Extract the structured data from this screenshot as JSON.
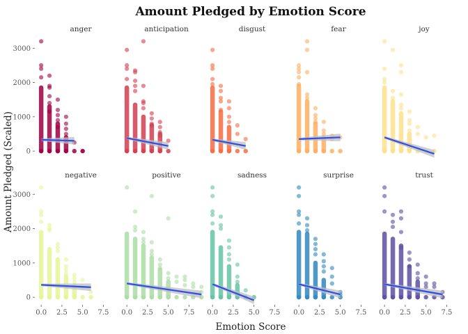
{
  "chart_data": {
    "type": "scatter",
    "title": "Amount Pledged by Emotion Score",
    "xlabel": "Emotion Score",
    "ylabel": "Amount Pledged (Scaled)",
    "xlim": [
      -0.6,
      7.8
    ],
    "ylim": [
      -180,
      3350
    ],
    "x_ticks": [
      0,
      2.5,
      5,
      7.5
    ],
    "x_tick_labels": [
      "0.0",
      "2.5",
      "5.0",
      "7.5"
    ],
    "y_ticks": [
      0,
      1000,
      2000,
      3000
    ],
    "y_tick_labels": [
      "0",
      "1000",
      "2000",
      "3000"
    ],
    "grid": false,
    "legend": "none",
    "trend_color": "#3050e8",
    "ribbon_color": "#bdbdbd",
    "panels": [
      {
        "name": "anger",
        "color": "#9e0142",
        "max_x": 4,
        "trend": [
          [
            0,
            330
          ],
          [
            4,
            300
          ]
        ],
        "points": [
          [
            0,
            3200
          ],
          [
            0,
            2500
          ],
          [
            0,
            2400
          ],
          [
            0,
            2150
          ],
          [
            1,
            2200
          ],
          [
            1,
            1900
          ],
          [
            1,
            1850
          ],
          [
            1,
            1600
          ],
          [
            1,
            1400
          ],
          [
            1,
            1150
          ],
          [
            2,
            1500
          ],
          [
            2,
            1200
          ],
          [
            2,
            1050
          ],
          [
            2,
            900
          ],
          [
            2,
            700
          ],
          [
            3,
            1000
          ],
          [
            3,
            800
          ],
          [
            3,
            650
          ],
          [
            3,
            500
          ],
          [
            4,
            250
          ],
          [
            5,
            0
          ]
        ],
        "dense": [
          [
            0,
            0,
            1850
          ],
          [
            1,
            0,
            1300
          ],
          [
            2,
            0,
            800
          ],
          [
            3,
            0,
            400
          ]
        ],
        "zero_x": [
          0,
          1,
          2,
          3,
          4,
          5
        ]
      },
      {
        "name": "anticipation",
        "color": "#d53e4f",
        "max_x": 5,
        "trend": [
          [
            0,
            380
          ],
          [
            5,
            150
          ]
        ],
        "points": [
          [
            0,
            2950
          ],
          [
            0,
            2500
          ],
          [
            0,
            2400
          ],
          [
            0,
            2100
          ],
          [
            1,
            2350
          ],
          [
            1,
            2300
          ],
          [
            1,
            2050
          ],
          [
            1,
            1900
          ],
          [
            1,
            1750
          ],
          [
            2,
            3200
          ],
          [
            2,
            1900
          ],
          [
            2,
            1450
          ],
          [
            2,
            1400
          ],
          [
            2,
            1250
          ],
          [
            3,
            1100
          ],
          [
            3,
            950
          ],
          [
            3,
            800
          ],
          [
            3,
            750
          ],
          [
            4,
            850
          ],
          [
            4,
            700
          ],
          [
            4,
            550
          ],
          [
            4,
            450
          ],
          [
            5,
            300
          ]
        ],
        "dense": [
          [
            0,
            0,
            1850
          ],
          [
            1,
            0,
            1350
          ],
          [
            2,
            0,
            1000
          ],
          [
            3,
            0,
            750
          ],
          [
            4,
            0,
            500
          ]
        ],
        "zero_x": [
          0,
          1,
          2,
          3,
          4,
          5
        ]
      },
      {
        "name": "disgust",
        "color": "#f46d43",
        "max_x": 4,
        "trend": [
          [
            0,
            330
          ],
          [
            4,
            150
          ]
        ],
        "points": [
          [
            0,
            2950
          ],
          [
            0,
            2500
          ],
          [
            0,
            2400
          ],
          [
            0,
            2100
          ],
          [
            0,
            1950
          ],
          [
            1,
            1900
          ],
          [
            1,
            1750
          ],
          [
            1,
            1550
          ],
          [
            1,
            1450
          ],
          [
            1,
            1200
          ],
          [
            2,
            1450
          ],
          [
            2,
            1250
          ],
          [
            2,
            1000
          ],
          [
            2,
            850
          ],
          [
            3,
            750
          ],
          [
            3,
            500
          ],
          [
            4,
            350
          ]
        ],
        "dense": [
          [
            0,
            0,
            1850
          ],
          [
            1,
            0,
            1150
          ],
          [
            2,
            0,
            700
          ]
        ],
        "zero_x": [
          0,
          1,
          2,
          3,
          4
        ]
      },
      {
        "name": "fear",
        "color": "#fdae61",
        "max_x": 5,
        "trend": [
          [
            0,
            350
          ],
          [
            5,
            400
          ]
        ],
        "points": [
          [
            0,
            2500
          ],
          [
            0,
            2400
          ],
          [
            0,
            2300
          ],
          [
            0,
            2150
          ],
          [
            0,
            1950
          ],
          [
            1,
            3200
          ],
          [
            1,
            2950
          ],
          [
            1,
            2300
          ],
          [
            1,
            1650
          ],
          [
            1,
            1550
          ],
          [
            2,
            1250
          ],
          [
            2,
            1050
          ],
          [
            2,
            950
          ],
          [
            2,
            850
          ],
          [
            3,
            850
          ],
          [
            3,
            600
          ],
          [
            3,
            500
          ],
          [
            4,
            450
          ],
          [
            4,
            350
          ],
          [
            5,
            400
          ]
        ],
        "dense": [
          [
            0,
            0,
            1900
          ],
          [
            1,
            0,
            1450
          ],
          [
            2,
            0,
            800
          ],
          [
            3,
            0,
            400
          ]
        ],
        "zero_x": [
          0,
          1,
          2,
          3,
          4,
          5
        ]
      },
      {
        "name": "joy",
        "color": "#fee08b",
        "max_x": 6,
        "trend": [
          [
            0,
            400
          ],
          [
            6,
            -80
          ]
        ],
        "points": [
          [
            0,
            3200
          ],
          [
            0,
            2400
          ],
          [
            0,
            2100
          ],
          [
            0,
            2000
          ],
          [
            1,
            2950
          ],
          [
            1,
            1750
          ],
          [
            1,
            1550
          ],
          [
            2,
            2500
          ],
          [
            2,
            2300
          ],
          [
            2,
            1650
          ],
          [
            2,
            1350
          ],
          [
            2,
            1250
          ],
          [
            3,
            1150
          ],
          [
            3,
            900
          ],
          [
            3,
            800
          ],
          [
            3,
            600
          ],
          [
            4,
            700
          ],
          [
            4,
            500
          ],
          [
            5,
            400
          ],
          [
            6,
            450
          ]
        ],
        "dense": [
          [
            0,
            0,
            1850
          ],
          [
            1,
            0,
            1450
          ],
          [
            2,
            0,
            1100
          ],
          [
            3,
            0,
            500
          ]
        ],
        "zero_x": [
          0,
          1,
          2,
          3,
          4,
          5,
          6
        ]
      },
      {
        "name": "negative",
        "color": "#e6f598",
        "max_x": 6,
        "trend": [
          [
            0,
            360
          ],
          [
            6,
            290
          ]
        ],
        "points": [
          [
            0,
            3200
          ],
          [
            0,
            2500
          ],
          [
            0,
            2400
          ],
          [
            0,
            2200
          ],
          [
            1,
            2100
          ],
          [
            1,
            2000
          ],
          [
            1,
            1950
          ],
          [
            2,
            1550
          ],
          [
            2,
            1450
          ],
          [
            2,
            1350
          ],
          [
            3,
            1100
          ],
          [
            3,
            900
          ],
          [
            3,
            800
          ],
          [
            3,
            700
          ],
          [
            4,
            650
          ],
          [
            4,
            550
          ],
          [
            4,
            450
          ],
          [
            5,
            500
          ],
          [
            5,
            300
          ],
          [
            6,
            150
          ]
        ],
        "dense": [
          [
            0,
            0,
            1900
          ],
          [
            1,
            0,
            1400
          ],
          [
            2,
            0,
            1100
          ],
          [
            3,
            0,
            600
          ],
          [
            4,
            0,
            350
          ]
        ],
        "zero_x": [
          0,
          1,
          2,
          3,
          4,
          5,
          6
        ]
      },
      {
        "name": "positive",
        "color": "#abdda4",
        "max_x": 9,
        "trend": [
          [
            0,
            400
          ],
          [
            9,
            80
          ]
        ],
        "points": [
          [
            0,
            3200
          ],
          [
            1,
            2500
          ],
          [
            1,
            2050
          ],
          [
            1,
            1950
          ],
          [
            2,
            1900
          ],
          [
            2,
            1700
          ],
          [
            2,
            1600
          ],
          [
            3,
            2950
          ],
          [
            3,
            1600
          ],
          [
            3,
            1350
          ],
          [
            3,
            1250
          ],
          [
            4,
            1100
          ],
          [
            4,
            950
          ],
          [
            4,
            850
          ],
          [
            5,
            2300
          ],
          [
            5,
            700
          ],
          [
            5,
            550
          ],
          [
            6,
            600
          ],
          [
            6,
            450
          ],
          [
            7,
            600
          ],
          [
            7,
            500
          ],
          [
            7,
            350
          ],
          [
            8,
            400
          ],
          [
            8,
            300
          ],
          [
            9,
            300
          ],
          [
            9,
            150
          ]
        ],
        "dense": [
          [
            0,
            0,
            1850
          ],
          [
            1,
            0,
            1700
          ],
          [
            2,
            0,
            1500
          ],
          [
            3,
            0,
            1150
          ],
          [
            4,
            0,
            800
          ],
          [
            5,
            0,
            450
          ]
        ],
        "zero_x": [
          0,
          1,
          2,
          3,
          4,
          5,
          6,
          7,
          8,
          9
        ]
      },
      {
        "name": "sadness",
        "color": "#66c2a5",
        "max_x": 5,
        "trend": [
          [
            0,
            380
          ],
          [
            5,
            -90
          ]
        ],
        "points": [
          [
            0,
            3200
          ],
          [
            0,
            2950
          ],
          [
            0,
            2500
          ],
          [
            0,
            2400
          ],
          [
            0,
            2150
          ],
          [
            1,
            2350
          ],
          [
            1,
            2100
          ],
          [
            1,
            2000
          ],
          [
            2,
            1650
          ],
          [
            2,
            1450
          ],
          [
            2,
            1250
          ],
          [
            2,
            1100
          ],
          [
            3,
            950
          ],
          [
            3,
            600
          ],
          [
            3,
            450
          ],
          [
            4,
            200
          ]
        ],
        "dense": [
          [
            0,
            0,
            1900
          ],
          [
            1,
            0,
            1450
          ],
          [
            2,
            0,
            900
          ],
          [
            3,
            0,
            350
          ]
        ],
        "zero_x": [
          0,
          1,
          2,
          3,
          4,
          5
        ]
      },
      {
        "name": "surprise",
        "color": "#3288bd",
        "max_x": 5,
        "trend": [
          [
            0,
            380
          ],
          [
            5,
            80
          ]
        ],
        "points": [
          [
            0,
            3200
          ],
          [
            0,
            2950
          ],
          [
            0,
            2500
          ],
          [
            0,
            2400
          ],
          [
            0,
            2150
          ],
          [
            1,
            2300
          ],
          [
            1,
            2100
          ],
          [
            1,
            1950
          ],
          [
            2,
            1700
          ],
          [
            2,
            1550
          ],
          [
            2,
            1400
          ],
          [
            2,
            1250
          ],
          [
            3,
            1250
          ],
          [
            3,
            1050
          ],
          [
            3,
            900
          ],
          [
            3,
            750
          ],
          [
            4,
            850
          ],
          [
            4,
            600
          ],
          [
            4,
            400
          ],
          [
            5,
            150
          ],
          [
            5,
            80
          ]
        ],
        "dense": [
          [
            0,
            0,
            1900
          ],
          [
            1,
            0,
            1850
          ],
          [
            2,
            0,
            1000
          ],
          [
            3,
            0,
            500
          ]
        ],
        "zero_x": [
          0,
          1,
          2,
          3,
          4,
          5
        ]
      },
      {
        "name": "trust",
        "color": "#5e4fa2",
        "max_x": 7,
        "trend": [
          [
            0,
            380
          ],
          [
            7,
            80
          ]
        ],
        "points": [
          [
            0,
            3200
          ],
          [
            0,
            2950
          ],
          [
            0,
            2500
          ],
          [
            1,
            2400
          ],
          [
            1,
            2200
          ],
          [
            1,
            2050
          ],
          [
            2,
            2500
          ],
          [
            2,
            2300
          ],
          [
            2,
            1900
          ],
          [
            2,
            1450
          ],
          [
            3,
            1300
          ],
          [
            3,
            1100
          ],
          [
            3,
            900
          ],
          [
            4,
            950
          ],
          [
            4,
            700
          ],
          [
            4,
            550
          ],
          [
            5,
            600
          ],
          [
            5,
            400
          ],
          [
            5,
            300
          ],
          [
            6,
            400
          ],
          [
            6,
            300
          ],
          [
            7,
            150
          ]
        ],
        "dense": [
          [
            0,
            0,
            1850
          ],
          [
            1,
            0,
            1700
          ],
          [
            2,
            0,
            1500
          ],
          [
            3,
            0,
            900
          ],
          [
            4,
            0,
            450
          ]
        ],
        "zero_x": [
          0,
          1,
          2,
          3,
          4,
          5,
          6,
          7
        ]
      }
    ]
  }
}
